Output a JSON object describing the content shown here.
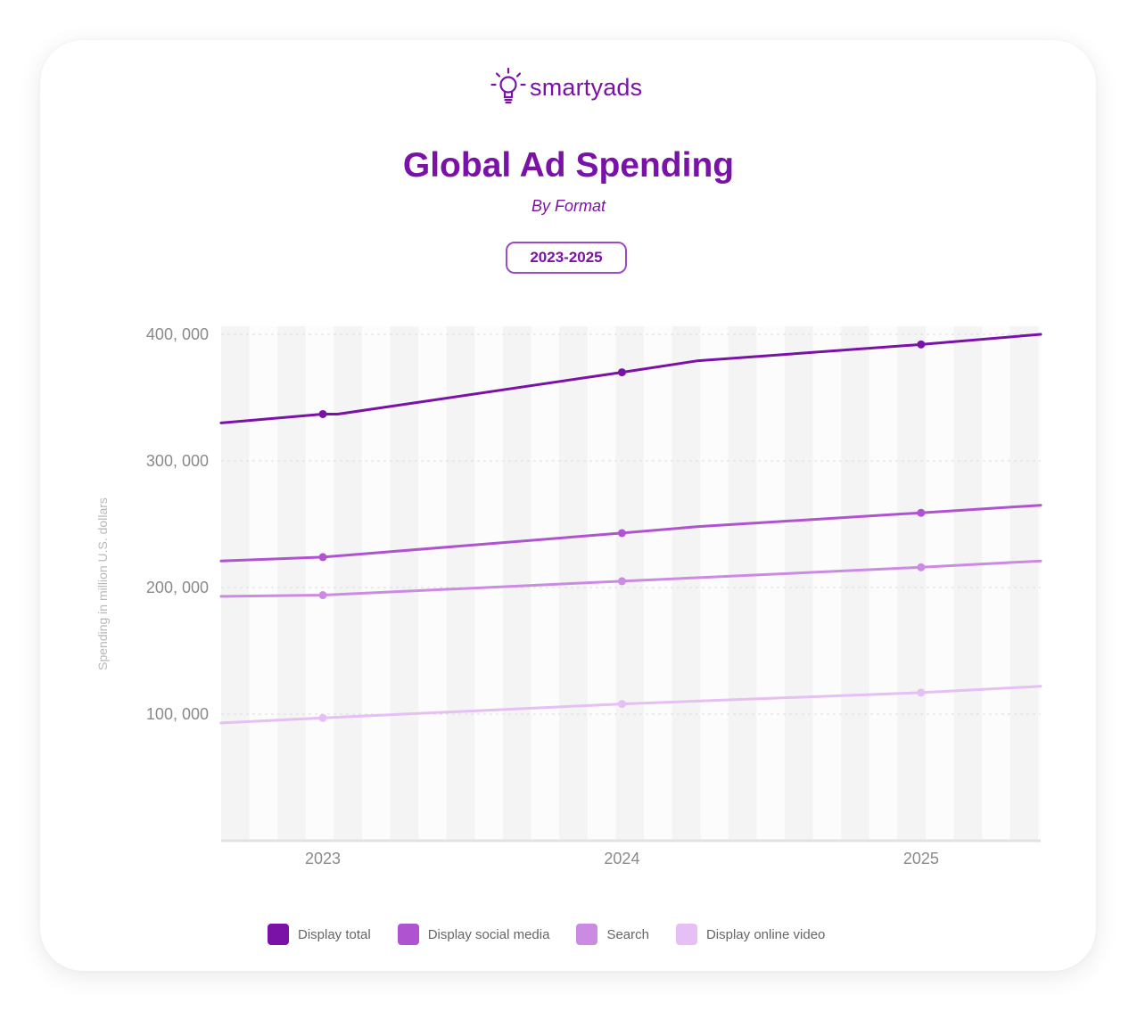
{
  "brand": {
    "name": "smartyads",
    "icon": "lightbulb-icon"
  },
  "header": {
    "title": "Global Ad Spending",
    "subtitle": "By Format",
    "range_label": "2023-2025"
  },
  "colors": {
    "brand": "#7b12a8",
    "display_total": "#7b12a8",
    "display_social_media": "#b053d1",
    "search": "#cc8be3",
    "display_online_video": "#e6bff4"
  },
  "chart_data": {
    "type": "line",
    "title": "Global Ad Spending",
    "subtitle": "By Format",
    "xlabel": "",
    "ylabel": "Spending in million U.S. dollars",
    "x_ticks": [
      "2023",
      "2024",
      "2025"
    ],
    "y_ticks": [
      100000,
      200000,
      300000,
      400000
    ],
    "y_tick_labels": [
      "100, 000",
      "200, 000",
      "300, 000",
      "400, 000"
    ],
    "ylim": [
      0,
      400000
    ],
    "xlim": [
      2022.66,
      2025.4
    ],
    "grid": "horizontal dashed",
    "legend_position": "bottom",
    "series": [
      {
        "name": "Display total",
        "color": "#7b12a8",
        "x": [
          2022.66,
          2023,
          2023.05,
          2024,
          2024.25,
          2025,
          2025.4
        ],
        "y": [
          330000,
          337000,
          337000,
          370000,
          379000,
          392000,
          400000
        ],
        "markers_at": [
          2023,
          2024,
          2025
        ]
      },
      {
        "name": "Display social media",
        "color": "#b053d1",
        "x": [
          2022.66,
          2023,
          2024,
          2024.25,
          2025,
          2025.4
        ],
        "y": [
          221000,
          224000,
          243000,
          248000,
          259000,
          265000
        ],
        "markers_at": [
          2023,
          2024,
          2025
        ]
      },
      {
        "name": "Search",
        "color": "#cc8be3",
        "x": [
          2022.66,
          2023,
          2024,
          2025,
          2025.4
        ],
        "y": [
          193000,
          194000,
          205000,
          216000,
          221000
        ],
        "markers_at": [
          2023,
          2024,
          2025
        ]
      },
      {
        "name": "Display online video",
        "color": "#e6bff4",
        "x": [
          2022.66,
          2023,
          2024,
          2025,
          2025.4
        ],
        "y": [
          93000,
          97000,
          108000,
          117000,
          122000
        ],
        "markers_at": [
          2023,
          2024,
          2025
        ]
      }
    ]
  }
}
